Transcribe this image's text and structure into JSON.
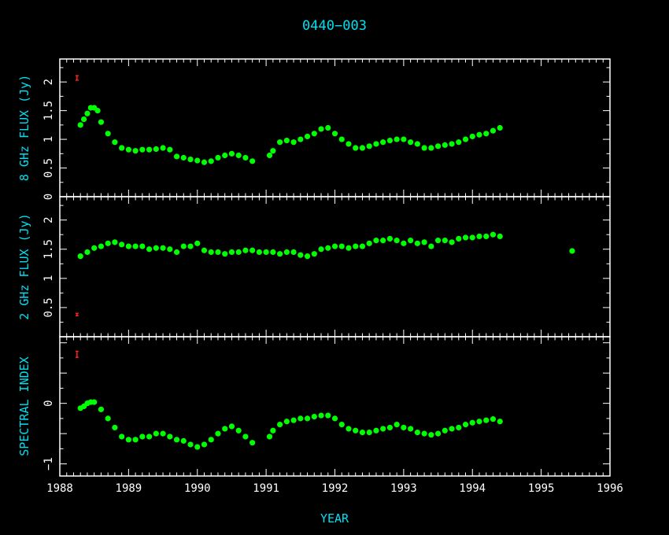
{
  "colors": {
    "background": "#000000",
    "axes": "#ffffff",
    "labels": "#00e0f0",
    "points": "#00ff00",
    "error_bar": "#ff2020"
  },
  "chart_data": {
    "type": "scatter",
    "title": "0440−003",
    "xlabel": "YEAR",
    "xlim": [
      1988,
      1996
    ],
    "xticks": [
      "1988",
      "1989",
      "1990",
      "1991",
      "1992",
      "1993",
      "1994",
      "1995",
      "1996"
    ],
    "panels": [
      {
        "key": "p8",
        "ylabel": "8 GHz FLUX (Jy)",
        "ylim": [
          0,
          2.4
        ],
        "ytick_labels": [
          "0",
          "0.5",
          "1",
          "1.5",
          "2"
        ],
        "ytick_values": [
          0,
          0.5,
          1,
          1.5,
          2
        ],
        "error_bar": {
          "x": 1988.25,
          "y": 2.07,
          "half": 0.04
        },
        "series": [
          {
            "x": [
              1988.3,
              1988.35,
              1988.4,
              1988.45,
              1988.5,
              1988.55,
              1988.6,
              1988.7,
              1988.8,
              1988.9,
              1989.0,
              1989.1,
              1989.2,
              1989.3,
              1989.4,
              1989.5,
              1989.6,
              1989.7,
              1989.8,
              1989.9,
              1990.0,
              1990.1,
              1990.2,
              1990.3,
              1990.4,
              1990.5,
              1990.6,
              1990.7,
              1990.8,
              1991.05,
              1991.1,
              1991.2,
              1991.3,
              1991.4,
              1991.5,
              1991.6,
              1991.7,
              1991.8,
              1991.9,
              1992.0,
              1992.1,
              1992.2,
              1992.3,
              1992.4,
              1992.5,
              1992.6,
              1992.7,
              1992.8,
              1992.9,
              1993.0,
              1993.1,
              1993.2,
              1993.3,
              1993.4,
              1993.5,
              1993.6,
              1993.7,
              1993.8,
              1993.9,
              1994.0,
              1994.1,
              1994.2,
              1994.3,
              1994.4
            ],
            "y": [
              1.25,
              1.35,
              1.45,
              1.55,
              1.55,
              1.5,
              1.3,
              1.1,
              0.95,
              0.85,
              0.82,
              0.8,
              0.82,
              0.82,
              0.83,
              0.85,
              0.82,
              0.7,
              0.68,
              0.65,
              0.63,
              0.6,
              0.62,
              0.68,
              0.72,
              0.75,
              0.72,
              0.68,
              0.62,
              0.72,
              0.8,
              0.95,
              0.98,
              0.95,
              1.0,
              1.05,
              1.1,
              1.18,
              1.2,
              1.1,
              1.0,
              0.92,
              0.85,
              0.85,
              0.88,
              0.92,
              0.95,
              0.98,
              1.0,
              1.0,
              0.95,
              0.92,
              0.85,
              0.85,
              0.88,
              0.9,
              0.92,
              0.95,
              1.0,
              1.05,
              1.08,
              1.1,
              1.15,
              1.2
            ]
          }
        ]
      },
      {
        "key": "p2",
        "ylabel": "2 GHz FLUX (Jy)",
        "ylim": [
          0,
          2.4
        ],
        "ytick_labels": [
          "0.5",
          "1",
          "1.5",
          "2"
        ],
        "ytick_values": [
          0.5,
          1,
          1.5,
          2
        ],
        "error_bar": {
          "x": 1988.25,
          "y": 0.38,
          "half": 0.02
        },
        "series": [
          {
            "x": [
              1988.3,
              1988.4,
              1988.5,
              1988.6,
              1988.7,
              1988.8,
              1988.9,
              1989.0,
              1989.1,
              1989.2,
              1989.3,
              1989.4,
              1989.5,
              1989.6,
              1989.7,
              1989.8,
              1989.9,
              1990.0,
              1990.1,
              1990.2,
              1990.3,
              1990.4,
              1990.5,
              1990.6,
              1990.7,
              1990.8,
              1990.9,
              1991.0,
              1991.1,
              1991.2,
              1991.3,
              1991.4,
              1991.5,
              1991.6,
              1991.7,
              1991.8,
              1991.9,
              1992.0,
              1992.1,
              1992.2,
              1992.3,
              1992.4,
              1992.5,
              1992.6,
              1992.7,
              1992.8,
              1992.9,
              1993.0,
              1993.1,
              1993.2,
              1993.3,
              1993.4,
              1993.5,
              1993.6,
              1993.7,
              1993.8,
              1993.9,
              1994.0,
              1994.1,
              1994.2,
              1994.3,
              1994.4,
              1995.45
            ],
            "y": [
              1.38,
              1.45,
              1.52,
              1.55,
              1.6,
              1.62,
              1.58,
              1.55,
              1.55,
              1.55,
              1.5,
              1.52,
              1.52,
              1.5,
              1.45,
              1.55,
              1.55,
              1.6,
              1.48,
              1.45,
              1.45,
              1.42,
              1.45,
              1.45,
              1.48,
              1.48,
              1.45,
              1.45,
              1.45,
              1.42,
              1.45,
              1.45,
              1.4,
              1.38,
              1.42,
              1.5,
              1.52,
              1.55,
              1.55,
              1.52,
              1.55,
              1.55,
              1.6,
              1.65,
              1.65,
              1.68,
              1.65,
              1.6,
              1.65,
              1.6,
              1.62,
              1.55,
              1.65,
              1.65,
              1.62,
              1.68,
              1.7,
              1.7,
              1.72,
              1.72,
              1.75,
              1.72,
              1.47
            ]
          }
        ]
      },
      {
        "key": "pi",
        "ylabel": "SPECTRAL INDEX",
        "ylim": [
          -1.2,
          1.1
        ],
        "ytick_labels": [
          "−1",
          "0"
        ],
        "ytick_values": [
          -1,
          0
        ],
        "error_bar": {
          "x": 1988.25,
          "y": 0.81,
          "half": 0.05
        },
        "series": [
          {
            "x": [
              1988.3,
              1988.35,
              1988.4,
              1988.45,
              1988.5,
              1988.6,
              1988.7,
              1988.8,
              1988.9,
              1989.0,
              1989.1,
              1989.2,
              1989.3,
              1989.4,
              1989.5,
              1989.6,
              1989.7,
              1989.8,
              1989.9,
              1990.0,
              1990.1,
              1990.2,
              1990.3,
              1990.4,
              1990.5,
              1990.6,
              1990.7,
              1990.8,
              1991.05,
              1991.1,
              1991.2,
              1991.3,
              1991.4,
              1991.5,
              1991.6,
              1991.7,
              1991.8,
              1991.9,
              1992.0,
              1992.1,
              1992.2,
              1992.3,
              1992.4,
              1992.5,
              1992.6,
              1992.7,
              1992.8,
              1992.9,
              1993.0,
              1993.1,
              1993.2,
              1993.3,
              1993.4,
              1993.5,
              1993.6,
              1993.7,
              1993.8,
              1993.9,
              1994.0,
              1994.1,
              1994.2,
              1994.3,
              1994.4
            ],
            "y": [
              -0.08,
              -0.05,
              0,
              0.02,
              0.02,
              -0.1,
              -0.25,
              -0.4,
              -0.55,
              -0.6,
              -0.6,
              -0.55,
              -0.55,
              -0.5,
              -0.5,
              -0.55,
              -0.6,
              -0.62,
              -0.68,
              -0.72,
              -0.68,
              -0.6,
              -0.5,
              -0.42,
              -0.38,
              -0.45,
              -0.55,
              -0.65,
              -0.55,
              -0.45,
              -0.35,
              -0.3,
              -0.28,
              -0.25,
              -0.25,
              -0.22,
              -0.2,
              -0.2,
              -0.25,
              -0.35,
              -0.42,
              -0.45,
              -0.48,
              -0.48,
              -0.45,
              -0.42,
              -0.4,
              -0.35,
              -0.4,
              -0.42,
              -0.48,
              -0.5,
              -0.52,
              -0.5,
              -0.45,
              -0.42,
              -0.4,
              -0.35,
              -0.32,
              -0.3,
              -0.28,
              -0.26,
              -0.3
            ]
          }
        ]
      }
    ]
  }
}
